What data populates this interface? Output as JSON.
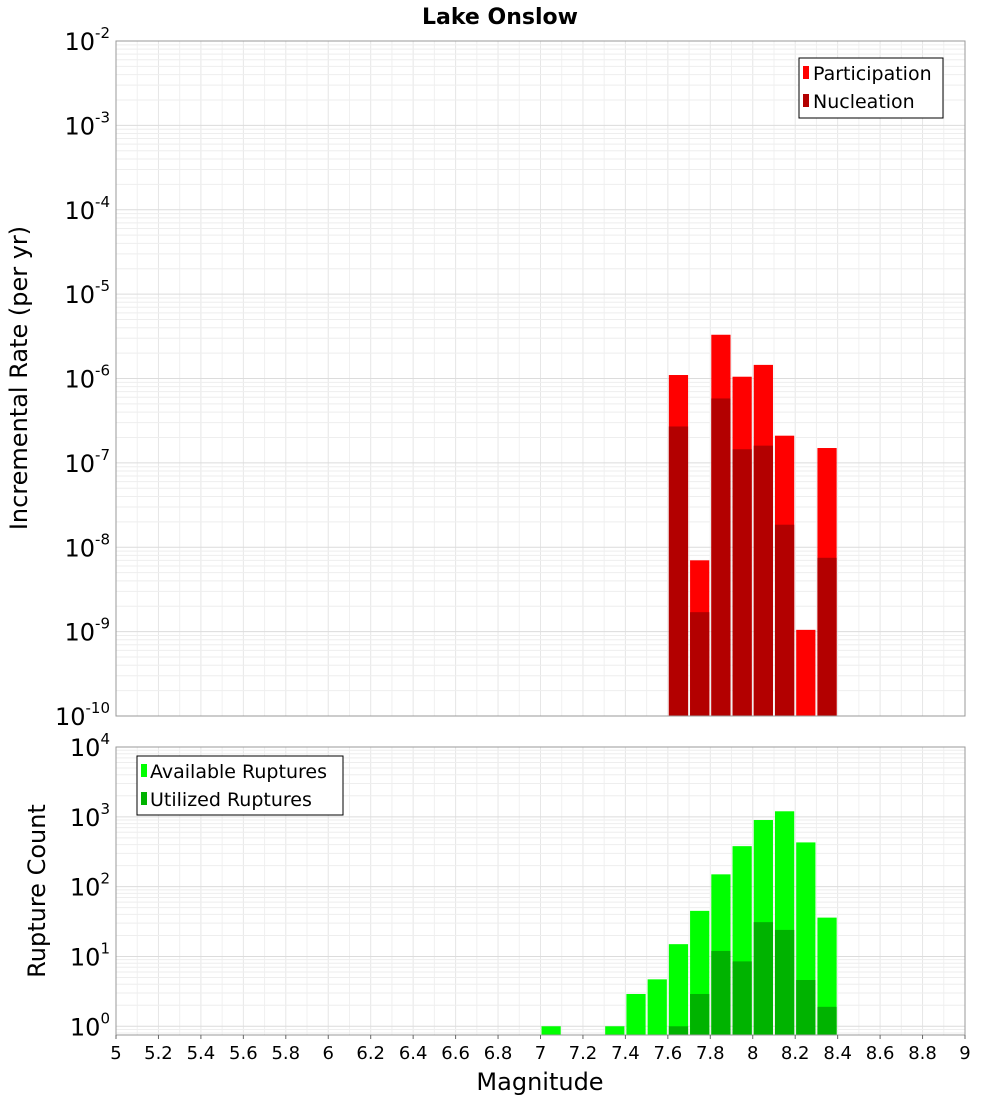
{
  "chart_data": [
    {
      "type": "bar",
      "title": "Lake Onslow",
      "xlabel": "",
      "ylabel": "Incremental Rate (per yr)",
      "yscale": "log",
      "xlim": [
        5,
        9
      ],
      "ylim": [
        1e-10,
        0.01
      ],
      "grid": true,
      "legend_position": "top-right",
      "bin_width": 0.1,
      "y_ticks": [
        {
          "base": "10",
          "exp": "-10"
        },
        {
          "base": "10",
          "exp": "-9"
        },
        {
          "base": "10",
          "exp": "-8"
        },
        {
          "base": "10",
          "exp": "-7"
        },
        {
          "base": "10",
          "exp": "-6"
        },
        {
          "base": "10",
          "exp": "-5"
        },
        {
          "base": "10",
          "exp": "-4"
        },
        {
          "base": "10",
          "exp": "-3"
        },
        {
          "base": "10",
          "exp": "-2"
        }
      ],
      "x": [
        7.65,
        7.75,
        7.85,
        7.95,
        8.05,
        8.15,
        8.25,
        8.35
      ],
      "series": [
        {
          "name": "Participation",
          "color": "#ff0000",
          "values": [
            1.1e-06,
            7e-09,
            3.3e-06,
            1.05e-06,
            1.45e-06,
            2.1e-07,
            1.05e-09,
            1.5e-07
          ]
        },
        {
          "name": "Nucleation",
          "color": "#b30000",
          "values": [
            2.7e-07,
            1.7e-09,
            5.8e-07,
            1.45e-07,
            1.6e-07,
            1.85e-08,
            null,
            7.5e-09
          ]
        }
      ]
    },
    {
      "type": "bar",
      "title": "",
      "xlabel": "Magnitude",
      "ylabel": "Rupture Count",
      "yscale": "log",
      "xlim": [
        5,
        9
      ],
      "ylim": [
        0.75,
        10000
      ],
      "grid": true,
      "legend_position": "top-left",
      "bin_width": 0.1,
      "x_ticks": [
        "5",
        "5.2",
        "5.4",
        "5.6",
        "5.8",
        "6",
        "6.2",
        "6.4",
        "6.6",
        "6.8",
        "7",
        "7.2",
        "7.4",
        "7.6",
        "7.8",
        "8",
        "8.2",
        "8.4",
        "8.6",
        "8.8",
        "9"
      ],
      "y_ticks": [
        {
          "base": "10",
          "exp": "0"
        },
        {
          "base": "10",
          "exp": "1"
        },
        {
          "base": "10",
          "exp": "2"
        },
        {
          "base": "10",
          "exp": "3"
        },
        {
          "base": "10",
          "exp": "4"
        }
      ],
      "x": [
        7.05,
        7.35,
        7.45,
        7.55,
        7.65,
        7.75,
        7.85,
        7.95,
        8.05,
        8.15,
        8.25,
        8.35
      ],
      "series": [
        {
          "name": "Available Ruptures",
          "color": "#00ff00",
          "values": [
            1,
            1,
            2.9,
            4.7,
            15,
            45,
            150,
            380,
            900,
            1200,
            430,
            36
          ]
        },
        {
          "name": "Utilized Ruptures",
          "color": "#00b300",
          "values": [
            null,
            null,
            null,
            null,
            1,
            2.9,
            12,
            8.5,
            31,
            24,
            4.6,
            1.9
          ]
        }
      ]
    }
  ]
}
